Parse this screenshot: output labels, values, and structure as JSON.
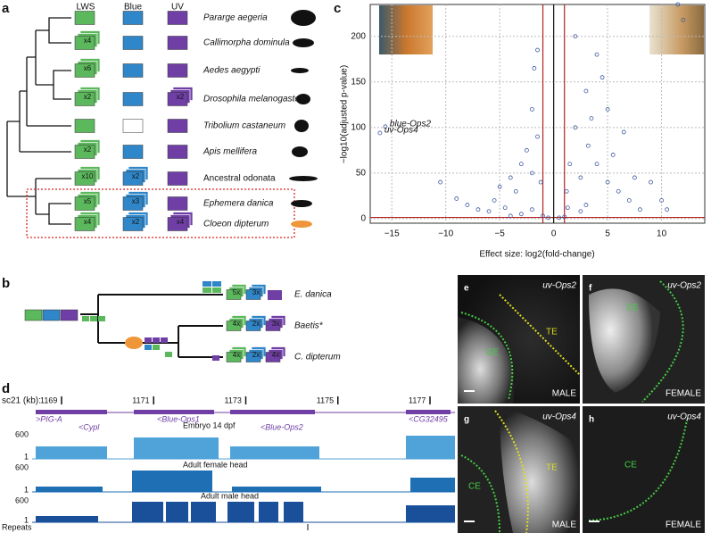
{
  "panel_labels": [
    "a",
    "b",
    "c",
    "d",
    "e",
    "f",
    "g",
    "h"
  ],
  "panel_a": {
    "headers": [
      "LWS",
      "Blue",
      "UV"
    ],
    "colors": {
      "lws": "#5cb85c",
      "blue": "#2f86c8",
      "uv": "#6f3fa6"
    },
    "species": [
      {
        "name": "Pararge aegeria"
      },
      {
        "name": "Callimorpha dominula",
        "lws": "x4"
      },
      {
        "name": "Aedes aegypti",
        "lws": "x6"
      },
      {
        "name": "Drosophila melanogaster",
        "lws": "x2",
        "uv": "x2"
      },
      {
        "name": "Tribolium castaneum",
        "blue_empty": true
      },
      {
        "name": "Apis mellifera",
        "lws": "x2"
      },
      {
        "name": "Ancestral odonata",
        "lws": "x10",
        "blue": "x2"
      },
      {
        "name": "Ephemera danica",
        "lws": "x5",
        "blue": "x3"
      },
      {
        "name": "Cloeon dipterum",
        "lws": "x4",
        "blue": "x2",
        "uv": "x4"
      }
    ]
  },
  "panel_b": {
    "taxa": [
      {
        "name": "E. danica",
        "lws": "5x",
        "blue": "3x"
      },
      {
        "name": "Baetis*",
        "lws": "4x",
        "blue": "2x",
        "uv": "3x"
      },
      {
        "name": "C. dipterum",
        "lws": "4x",
        "blue": "2x",
        "uv": "4x"
      }
    ]
  },
  "chart_data": {
    "type": "scatter",
    "xlabel": "Effect size: log2(fold-change)",
    "ylabel": "−log10(adjusted p-value)",
    "xlim": [
      -17,
      14
    ],
    "ylim": [
      -5,
      235
    ],
    "xticks": [
      {
        "value": -15,
        "label": "−15"
      },
      {
        "value": -10,
        "label": "−10"
      },
      {
        "value": -5,
        "label": "−5"
      },
      0,
      5,
      10
    ],
    "yticks": [
      0,
      50,
      100,
      150,
      200
    ],
    "grid": true,
    "color": "#3d5a9e",
    "reference_lines": {
      "x": [
        -1,
        1
      ],
      "y": [
        1.3
      ],
      "color": "#b22222"
    },
    "center_line": 0,
    "x": [
      -15.6,
      -16.1,
      -10.5,
      -9,
      -8,
      -7,
      -6,
      -5.5,
      -5,
      -4.5,
      -4,
      -3.5,
      -3,
      -2.5,
      -2,
      -2,
      -1.8,
      -1.5,
      -1.5,
      -1.2,
      -3,
      -4,
      -2,
      1.2,
      1.5,
      2,
      2,
      2.5,
      3,
      3.2,
      3.5,
      4,
      4,
      4.5,
      5,
      5,
      5.5,
      6,
      6.5,
      7,
      7.5,
      8,
      9,
      10,
      10.5,
      11.5,
      12,
      1.3,
      2.5,
      3,
      -0.5,
      0.5,
      -1,
      1
    ],
    "values": [
      101,
      94,
      40,
      22,
      15,
      10,
      8,
      20,
      35,
      12,
      45,
      30,
      60,
      75,
      50,
      120,
      165,
      185,
      90,
      40,
      5,
      3,
      10,
      30,
      60,
      200,
      100,
      45,
      140,
      80,
      110,
      180,
      60,
      155,
      40,
      120,
      70,
      30,
      95,
      20,
      45,
      10,
      40,
      20,
      10,
      235,
      218,
      12,
      8,
      15,
      1,
      1,
      3,
      2
    ],
    "annotations": [
      {
        "text": "blue-Ops2",
        "point": 0
      },
      {
        "text": "uv-Ops4",
        "point": 1
      }
    ]
  },
  "panel_d": {
    "axis_label": "sc21 (kb):",
    "coordinates": [
      1169,
      1171,
      1173,
      1175,
      1177
    ],
    "genes": [
      ">PIG-A",
      "<Cypl",
      "<Blue-Ops1",
      "<Blue-Ops2",
      "<CG32495"
    ],
    "tracks": [
      "Embryo 14 dpf",
      "Adult female head",
      "Adult male head"
    ],
    "track_max": "600",
    "track_min": "1",
    "repeats": "Repeats"
  },
  "panels_eh": [
    {
      "gene": "uv-Ops2",
      "regions": [
        "CE",
        "TE"
      ],
      "sex": "MALE"
    },
    {
      "gene": "uv-Ops2",
      "regions": [
        "CE"
      ],
      "sex": "FEMALE"
    },
    {
      "gene": "uv-Ops4",
      "regions": [
        "CE",
        "TE"
      ],
      "sex": "MALE"
    },
    {
      "gene": "uv-Ops4",
      "regions": [
        "CE"
      ],
      "sex": "FEMALE"
    }
  ]
}
